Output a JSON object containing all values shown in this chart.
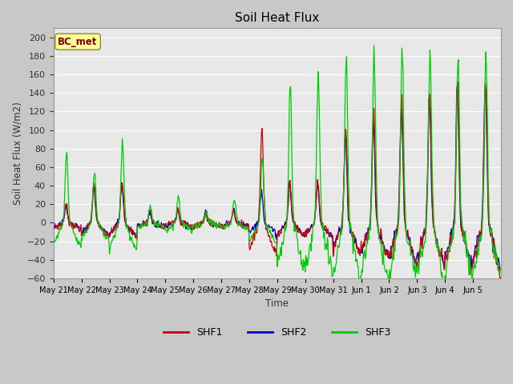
{
  "title": "Soil Heat Flux",
  "ylabel": "Soil Heat Flux (W/m2)",
  "xlabel": "Time",
  "ylim": [
    -60,
    210
  ],
  "yticks": [
    -60,
    -40,
    -20,
    0,
    20,
    40,
    60,
    80,
    100,
    120,
    140,
    160,
    180,
    200
  ],
  "fig_bg": "#c8c8c8",
  "plot_bg": "#e8e8e8",
  "legend_label": "BC_met",
  "series_colors": {
    "SHF1": "#cc0000",
    "SHF2": "#0000cc",
    "SHF3": "#00cc00"
  },
  "annotation_box_color": "#ffff99",
  "annotation_text_color": "#800000",
  "x_labels": [
    "May 21",
    "May 22",
    "May 23",
    "May 24",
    "May 25",
    "May 26",
    "May 27",
    "May 28",
    "May 29",
    "May 30",
    "May 31",
    "Jun 1",
    "Jun 2",
    "Jun 3",
    "Jun 4",
    "Jun 5"
  ]
}
